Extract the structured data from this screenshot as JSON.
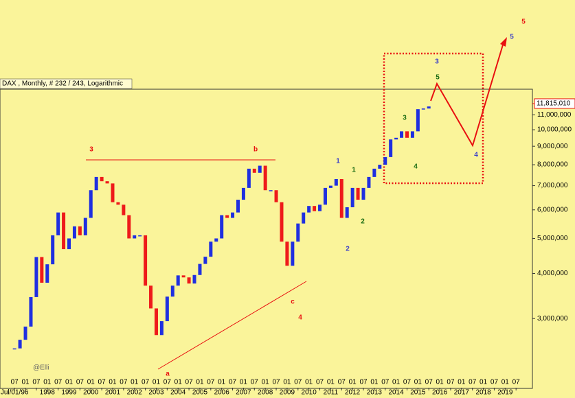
{
  "chart_data": {
    "type": "bar",
    "title": "DAX , Monthly, # 232 / 243, Logarithmic",
    "watermark": "@Elli",
    "log_scale": true,
    "up_color": "#1f2fe0",
    "down_color": "#ee1a1a",
    "x": [
      "1996-07",
      "1996-10",
      "1997-01",
      "1997-04",
      "1997-07",
      "1997-10",
      "1998-01",
      "1998-04",
      "1998-07",
      "1998-10",
      "1999-01",
      "1999-04",
      "1999-07",
      "1999-10",
      "2000-01",
      "2000-04",
      "2000-07",
      "2000-10",
      "2001-01",
      "2001-04",
      "2001-07",
      "2001-10",
      "2002-01",
      "2002-04",
      "2002-07",
      "2002-10",
      "2003-01",
      "2003-04",
      "2003-07",
      "2003-10",
      "2004-01",
      "2004-04",
      "2004-07",
      "2004-10",
      "2005-01",
      "2005-04",
      "2005-07",
      "2005-10",
      "2006-01",
      "2006-04",
      "2006-07",
      "2006-10",
      "2007-01",
      "2007-04",
      "2007-07",
      "2007-10",
      "2008-01",
      "2008-04",
      "2008-07",
      "2008-10",
      "2009-01",
      "2009-04",
      "2009-07",
      "2009-10",
      "2010-01",
      "2010-04",
      "2010-07",
      "2010-10",
      "2011-01",
      "2011-04",
      "2011-07",
      "2011-10",
      "2012-01",
      "2012-04",
      "2012-07",
      "2012-10",
      "2013-01",
      "2013-04",
      "2013-07",
      "2013-10",
      "2014-01",
      "2014-04",
      "2014-07",
      "2014-10",
      "2015-01",
      "2015-04",
      "2015-07"
    ],
    "values": [
      2480000,
      2620000,
      2850000,
      3440000,
      4440000,
      3770000,
      4240000,
      5100000,
      5900000,
      4670000,
      5000000,
      5400000,
      5100000,
      5700000,
      6800000,
      7400000,
      7200000,
      7100000,
      6300000,
      6200000,
      5800000,
      5000000,
      5100000,
      5100000,
      3700000,
      3200000,
      2700000,
      2950000,
      3450000,
      3700000,
      3950000,
      3900000,
      3750000,
      3960000,
      4250000,
      4450000,
      4900000,
      5000000,
      5800000,
      5700000,
      5900000,
      6400000,
      6900000,
      7800000,
      7600000,
      7950000,
      6800000,
      6800000,
      6300000,
      4900000,
      4200000,
      4900000,
      5500000,
      5900000,
      6150000,
      5950000,
      6200000,
      6900000,
      7000000,
      7300000,
      5700000,
      6100000,
      6900000,
      6400000,
      6900000,
      7400000,
      7800000,
      8000000,
      8400000,
      9400000,
      9500000,
      9900000,
      9500000,
      9900000,
      11400000,
      11450000,
      11600000
    ],
    "current": {
      "value": 11815010,
      "label": "11,815,010"
    },
    "xlim": [
      "1995-11",
      "2020-04"
    ],
    "ylim": [
      1930000,
      12950000
    ],
    "yticks": [
      {
        "value": 3000000,
        "label": "3,000,000"
      },
      {
        "value": 4000000,
        "label": "4,000,000"
      },
      {
        "value": 5000000,
        "label": "5,000,000"
      },
      {
        "value": 6000000,
        "label": "6,000,000"
      },
      {
        "value": 7000000,
        "label": "7,000,000"
      },
      {
        "value": 8000000,
        "label": "8,000,000"
      },
      {
        "value": 9000000,
        "label": "9,000,000"
      },
      {
        "value": 10000000,
        "label": "10,000,000"
      },
      {
        "value": 11000000,
        "label": "11,000,000"
      }
    ],
    "xticks": [
      {
        "value": "1996-07",
        "label": "07"
      },
      {
        "value": "1997-01",
        "label": "01"
      },
      {
        "value": "1997-07",
        "label": "07"
      },
      {
        "value": "1998-01",
        "label": "01"
      },
      {
        "value": "1998-07",
        "label": "07"
      },
      {
        "value": "1999-01",
        "label": "01"
      },
      {
        "value": "1999-07",
        "label": "07"
      },
      {
        "value": "2000-01",
        "label": "01"
      },
      {
        "value": "2000-07",
        "label": "07"
      },
      {
        "value": "2001-01",
        "label": "01"
      },
      {
        "value": "2001-07",
        "label": "07"
      },
      {
        "value": "2002-01",
        "label": "01"
      },
      {
        "value": "2002-07",
        "label": "07"
      },
      {
        "value": "2003-01",
        "label": "01"
      },
      {
        "value": "2003-07",
        "label": "07"
      },
      {
        "value": "2004-01",
        "label": "01"
      },
      {
        "value": "2004-07",
        "label": "07"
      },
      {
        "value": "2005-01",
        "label": "01"
      },
      {
        "value": "2005-07",
        "label": "07"
      },
      {
        "value": "2006-01",
        "label": "01"
      },
      {
        "value": "2006-07",
        "label": "07"
      },
      {
        "value": "2007-01",
        "label": "01"
      },
      {
        "value": "2007-07",
        "label": "07"
      },
      {
        "value": "2008-01",
        "label": "01"
      },
      {
        "value": "2008-07",
        "label": "07"
      },
      {
        "value": "2009-01",
        "label": "01"
      },
      {
        "value": "2009-07",
        "label": "07"
      },
      {
        "value": "2010-01",
        "label": "01"
      },
      {
        "value": "2010-07",
        "label": "07"
      },
      {
        "value": "2011-01",
        "label": "01"
      },
      {
        "value": "2011-07",
        "label": "07"
      },
      {
        "value": "2012-01",
        "label": "01"
      },
      {
        "value": "2012-07",
        "label": "07"
      },
      {
        "value": "2013-01",
        "label": "01"
      },
      {
        "value": "2013-07",
        "label": "07"
      },
      {
        "value": "2014-01",
        "label": "01"
      },
      {
        "value": "2014-07",
        "label": "07"
      },
      {
        "value": "2015-01",
        "label": "01"
      },
      {
        "value": "2015-07",
        "label": "07"
      },
      {
        "value": "2016-01",
        "label": "01"
      },
      {
        "value": "2016-07",
        "label": "07"
      },
      {
        "value": "2017-01",
        "label": "01"
      },
      {
        "value": "2017-07",
        "label": "07"
      },
      {
        "value": "2018-01",
        "label": "01"
      },
      {
        "value": "2018-07",
        "label": "07"
      },
      {
        "value": "2019-01",
        "label": "01"
      },
      {
        "value": "2019-07",
        "label": "07"
      }
    ],
    "year_labels": [
      {
        "value": "1996-07",
        "label": "Jul/01/96"
      },
      {
        "value": "1998-01",
        "label": "1998"
      },
      {
        "value": "1999-01",
        "label": "1999"
      },
      {
        "value": "2000-01",
        "label": "2000"
      },
      {
        "value": "2001-01",
        "label": "2001"
      },
      {
        "value": "2002-01",
        "label": "2002"
      },
      {
        "value": "2003-01",
        "label": "2003"
      },
      {
        "value": "2004-01",
        "label": "2004"
      },
      {
        "value": "2005-01",
        "label": "2005"
      },
      {
        "value": "2006-01",
        "label": "2006"
      },
      {
        "value": "2007-01",
        "label": "2007"
      },
      {
        "value": "2008-01",
        "label": "2008"
      },
      {
        "value": "2009-01",
        "label": "2009"
      },
      {
        "value": "2010-01",
        "label": "2010"
      },
      {
        "value": "2011-01",
        "label": "2011"
      },
      {
        "value": "2012-01",
        "label": "2012"
      },
      {
        "value": "2013-01",
        "label": "2013"
      },
      {
        "value": "2014-01",
        "label": "2014"
      },
      {
        "value": "2015-01",
        "label": "2015"
      },
      {
        "value": "2016-01",
        "label": "2016"
      },
      {
        "value": "2017-01",
        "label": "2017"
      },
      {
        "value": "2018-01",
        "label": "2018"
      },
      {
        "value": "2019-01",
        "label": "2019"
      }
    ],
    "annotations": [
      {
        "text": "3",
        "color": "#e81010"
      },
      {
        "text": "b",
        "color": "#e81010"
      },
      {
        "text": "a",
        "color": "#e81010"
      },
      {
        "text": "c",
        "color": "#e81010"
      },
      {
        "text": "4",
        "color": "#e81010"
      },
      {
        "text": "1",
        "color": "#3b3fc8"
      },
      {
        "text": "2",
        "color": "#3b3fc8"
      },
      {
        "text": "1",
        "color": "#1a6b12"
      },
      {
        "text": "2",
        "color": "#1a6b12"
      },
      {
        "text": "3",
        "color": "#1a6b12"
      },
      {
        "text": "4",
        "color": "#1a6b12"
      },
      {
        "text": "3",
        "color": "#3b3fc8"
      },
      {
        "text": "5",
        "color": "#1a6b12"
      },
      {
        "text": "4",
        "color": "#3b3fc8"
      },
      {
        "text": "5",
        "color": "#3b3fc8"
      },
      {
        "text": "5",
        "color": "#e81010"
      }
    ]
  }
}
